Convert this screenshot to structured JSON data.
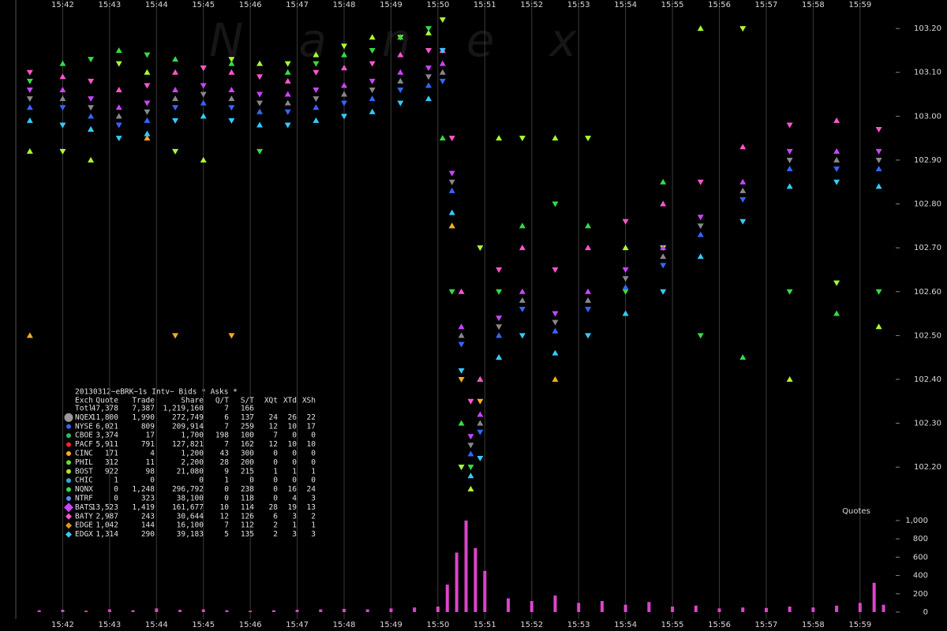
{
  "watermark": "Nanex",
  "chart_data": [
    {
      "type": "scatter",
      "xlim": [
        941.0,
        959.76
      ],
      "xticks": [
        {
          "value": 942,
          "label": "15:42"
        },
        {
          "value": 943,
          "label": "15:43"
        },
        {
          "value": 944,
          "label": "15:44"
        },
        {
          "value": 945,
          "label": "15:45"
        },
        {
          "value": 946,
          "label": "15:46"
        },
        {
          "value": 947,
          "label": "15:47"
        },
        {
          "value": 948,
          "label": "15:48"
        },
        {
          "value": 949,
          "label": "15:49"
        },
        {
          "value": 950,
          "label": "15:50"
        },
        {
          "value": 951,
          "label": "15:51"
        },
        {
          "value": 952,
          "label": "15:52"
        },
        {
          "value": 953,
          "label": "15:53"
        },
        {
          "value": 954,
          "label": "15:54"
        },
        {
          "value": 955,
          "label": "15:55"
        },
        {
          "value": 956,
          "label": "15:56"
        },
        {
          "value": 957,
          "label": "15:57"
        },
        {
          "value": 958,
          "label": "15:58"
        },
        {
          "value": 959,
          "label": "15:59"
        }
      ],
      "ylim": [
        102.096,
        103.265
      ],
      "yticks": [
        {
          "value": 102.2,
          "label": "102.20"
        },
        {
          "value": 102.3,
          "label": "102.30"
        },
        {
          "value": 102.4,
          "label": "102.40"
        },
        {
          "value": 102.5,
          "label": "102.50"
        },
        {
          "value": 102.6,
          "label": "102.60"
        },
        {
          "value": 102.7,
          "label": "102.70"
        },
        {
          "value": 102.8,
          "label": "102.80"
        },
        {
          "value": 102.9,
          "label": "102.90"
        },
        {
          "value": 103.0,
          "label": "103.00"
        },
        {
          "value": 103.1,
          "label": "103.10"
        },
        {
          "value": 103.2,
          "label": "103.20"
        }
      ],
      "grid": true,
      "x": [
        941.3,
        942,
        942.6,
        943.2,
        943.8,
        944.4,
        945,
        945.6,
        946.2,
        946.8,
        947.4,
        948,
        948.6,
        949.2,
        949.8,
        950.1,
        950.3,
        950.5,
        950.7,
        950.9,
        951.3,
        951.8,
        952.5,
        953.2,
        954,
        954.8,
        955.6,
        956.5,
        957.5,
        958.5,
        959.4
      ],
      "series": [
        {
          "name": "CBOE",
          "color": "#aaff33",
          "values": [
            102.92,
            102.92,
            102.9,
            103.12,
            103.1,
            102.92,
            102.9,
            103.13,
            103.12,
            103.12,
            103.14,
            103.16,
            103.18,
            103.18,
            103.19,
            103.22,
            102.75,
            102.2,
            102.15,
            102.7,
            102.95,
            102.95,
            102.95,
            102.95,
            102.7,
            102.7,
            103.2,
            103.2,
            102.4,
            102.62,
            102.52
          ]
        },
        {
          "name": "NQNX",
          "color": "#33dd44",
          "values": [
            103.08,
            103.12,
            103.13,
            103.15,
            103.14,
            103.13,
            103.11,
            103.12,
            102.92,
            103.1,
            103.12,
            103.14,
            103.15,
            103.18,
            103.2,
            102.95,
            102.6,
            102.3,
            102.2,
            102.4,
            102.6,
            102.75,
            102.8,
            102.75,
            102.6,
            102.85,
            102.5,
            102.45,
            102.6,
            102.55,
            102.6
          ]
        },
        {
          "name": "CINC",
          "color": "#ffaa22",
          "values": [
            102.5,
            102.98,
            102.97,
            null,
            102.95,
            102.5,
            null,
            102.5,
            null,
            null,
            null,
            null,
            null,
            null,
            null,
            null,
            102.75,
            102.4,
            null,
            102.35,
            102.45,
            null,
            102.4,
            null,
            null,
            null,
            null,
            null,
            null,
            null,
            null
          ]
        },
        {
          "name": "BATY",
          "color": "#ff55cc",
          "values": [
            103.1,
            103.09,
            103.08,
            103.06,
            103.07,
            103.1,
            103.11,
            103.1,
            103.09,
            103.08,
            103.1,
            103.11,
            103.12,
            103.14,
            103.15,
            103.15,
            102.95,
            102.6,
            102.35,
            102.4,
            102.65,
            102.7,
            102.65,
            102.7,
            102.76,
            102.8,
            102.85,
            102.93,
            102.98,
            102.99,
            102.97
          ]
        },
        {
          "name": "EDGX",
          "color": "#33ccff",
          "values": [
            102.99,
            102.98,
            102.97,
            102.95,
            102.96,
            102.99,
            103.0,
            102.99,
            102.98,
            102.98,
            102.99,
            103.0,
            103.01,
            103.03,
            103.04,
            103.15,
            102.78,
            102.42,
            102.18,
            102.22,
            102.45,
            102.5,
            102.46,
            102.5,
            102.55,
            102.6,
            102.68,
            102.76,
            102.84,
            102.85,
            102.84
          ]
        },
        {
          "name": "BATS",
          "color": "#cc44ff",
          "values": [
            103.06,
            103.06,
            103.04,
            103.02,
            103.03,
            103.06,
            103.07,
            103.06,
            103.05,
            103.05,
            103.06,
            103.07,
            103.08,
            103.1,
            103.11,
            103.12,
            102.87,
            102.52,
            102.27,
            102.32,
            102.54,
            102.6,
            102.55,
            102.6,
            102.65,
            102.7,
            102.77,
            102.85,
            102.92,
            102.92,
            102.92
          ]
        },
        {
          "name": "NYSE",
          "color": "#3366ff",
          "values": [
            103.02,
            103.02,
            103.0,
            102.98,
            102.99,
            103.02,
            103.03,
            103.02,
            103.01,
            103.01,
            103.02,
            103.03,
            103.04,
            103.06,
            103.07,
            103.08,
            102.83,
            102.48,
            102.23,
            102.28,
            102.5,
            102.56,
            102.51,
            102.56,
            102.61,
            102.66,
            102.73,
            102.81,
            102.88,
            102.88,
            102.88
          ]
        },
        {
          "name": "NQEX",
          "color": "#888888",
          "values": [
            103.04,
            103.04,
            103.02,
            103.0,
            103.01,
            103.04,
            103.05,
            103.04,
            103.03,
            103.03,
            103.04,
            103.05,
            103.06,
            103.08,
            103.09,
            103.1,
            102.85,
            102.5,
            102.25,
            102.3,
            102.52,
            102.58,
            102.53,
            102.58,
            102.63,
            102.68,
            102.75,
            102.83,
            102.9,
            102.9,
            102.9
          ]
        }
      ]
    },
    {
      "type": "bar",
      "label": "Quotes",
      "color": "#dd44cc",
      "xlim": [
        941.0,
        959.76
      ],
      "xticks": [
        {
          "value": 942,
          "label": "15:42"
        },
        {
          "value": 943,
          "label": "15:43"
        },
        {
          "value": 944,
          "label": "15:44"
        },
        {
          "value": 945,
          "label": "15:45"
        },
        {
          "value": 946,
          "label": "15:46"
        },
        {
          "value": 947,
          "label": "15:47"
        },
        {
          "value": 948,
          "label": "15:48"
        },
        {
          "value": 949,
          "label": "15:49"
        },
        {
          "value": 950,
          "label": "15:50"
        },
        {
          "value": 951,
          "label": "15:51"
        },
        {
          "value": 952,
          "label": "15:52"
        },
        {
          "value": 953,
          "label": "15:53"
        },
        {
          "value": 954,
          "label": "15:54"
        },
        {
          "value": 955,
          "label": "15:55"
        },
        {
          "value": 956,
          "label": "15:56"
        },
        {
          "value": 957,
          "label": "15:57"
        },
        {
          "value": 958,
          "label": "15:58"
        },
        {
          "value": 959,
          "label": "15:59"
        }
      ],
      "ylim": [
        0,
        1034
      ],
      "yticks": [
        0,
        200,
        400,
        600,
        800,
        {
          "value": 1000,
          "label": "1,000"
        }
      ],
      "grid": true,
      "x": [
        941.5,
        942,
        942.5,
        943,
        943.5,
        944,
        944.5,
        945,
        945.5,
        946,
        946.5,
        947,
        947.5,
        948,
        948.5,
        949,
        949.5,
        950,
        950.2,
        950.4,
        950.6,
        950.8,
        951,
        951.5,
        952,
        952.5,
        953,
        953.5,
        954,
        954.5,
        955,
        955.5,
        956,
        956.5,
        957,
        957.5,
        958,
        958.5,
        959,
        959.3,
        959.5
      ],
      "values": [
        20,
        25,
        15,
        30,
        20,
        40,
        25,
        30,
        20,
        15,
        20,
        25,
        30,
        35,
        30,
        40,
        50,
        60,
        300,
        650,
        1000,
        700,
        450,
        150,
        120,
        180,
        100,
        120,
        80,
        110,
        60,
        70,
        40,
        50,
        45,
        60,
        50,
        70,
        100,
        320,
        80
      ]
    }
  ],
  "legend_table": {
    "title": "20130312~eBRK~1s Intv~ Bids * Asks *",
    "columns": [
      "Exch",
      "Quote",
      "Trade",
      "Share",
      "Q/T",
      "S/T",
      "XQt",
      "XTd",
      "XSh"
    ],
    "rows": [
      [
        "Totl",
        "47,378",
        "7,387",
        "1,219,160",
        "7",
        "166"
      ],
      [
        "NQEX",
        "11,800",
        "1,990",
        "272,749",
        "6",
        "137",
        "24",
        "26",
        "22"
      ],
      [
        "NYSE",
        "6,021",
        "809",
        "209,914",
        "7",
        "259",
        "12",
        "10",
        "17"
      ],
      [
        "CBOE",
        "3,374",
        "17",
        "1,700",
        "198",
        "100",
        "7",
        "0",
        "0"
      ],
      [
        "PACF",
        "5,911",
        "791",
        "127,821",
        "7",
        "162",
        "12",
        "10",
        "10"
      ],
      [
        "CINC",
        "171",
        "4",
        "1,200",
        "43",
        "300",
        "0",
        "0",
        "0"
      ],
      [
        "PHIL",
        "312",
        "11",
        "2,200",
        "28",
        "200",
        "0",
        "0",
        "0"
      ],
      [
        "BOST",
        "922",
        "98",
        "21,080",
        "9",
        "215",
        "1",
        "1",
        "1"
      ],
      [
        "CHIC",
        "1",
        "0",
        "0",
        "1",
        "0",
        "0",
        "0",
        "0"
      ],
      [
        "NQNX",
        "0",
        "1,248",
        "296,792",
        "0",
        "238",
        "0",
        "16",
        "24"
      ],
      [
        "NTRF",
        "0",
        "323",
        "38,100",
        "0",
        "118",
        "0",
        "4",
        "3"
      ],
      [
        "BATS",
        "13,523",
        "1,419",
        "161,677",
        "10",
        "114",
        "28",
        "19",
        "13"
      ],
      [
        "BATY",
        "2,987",
        "243",
        "30,644",
        "12",
        "126",
        "6",
        "3",
        "2"
      ],
      [
        "EDGE",
        "1,042",
        "144",
        "16,100",
        "7",
        "112",
        "2",
        "1",
        "1"
      ],
      [
        "EDGX",
        "1,314",
        "290",
        "39,183",
        "5",
        "135",
        "2",
        "3",
        "3"
      ]
    ],
    "marker_colors": [
      "#999999",
      "#3366ff",
      "#33bb55",
      "#ff2222",
      "#ffaa22",
      "#66dd33",
      "#bbdd22",
      "#33aadd",
      "#33dd44",
      "#5588ff",
      "#cc44ff",
      "#ff55cc",
      "#dd9922",
      "#33ccff"
    ]
  }
}
